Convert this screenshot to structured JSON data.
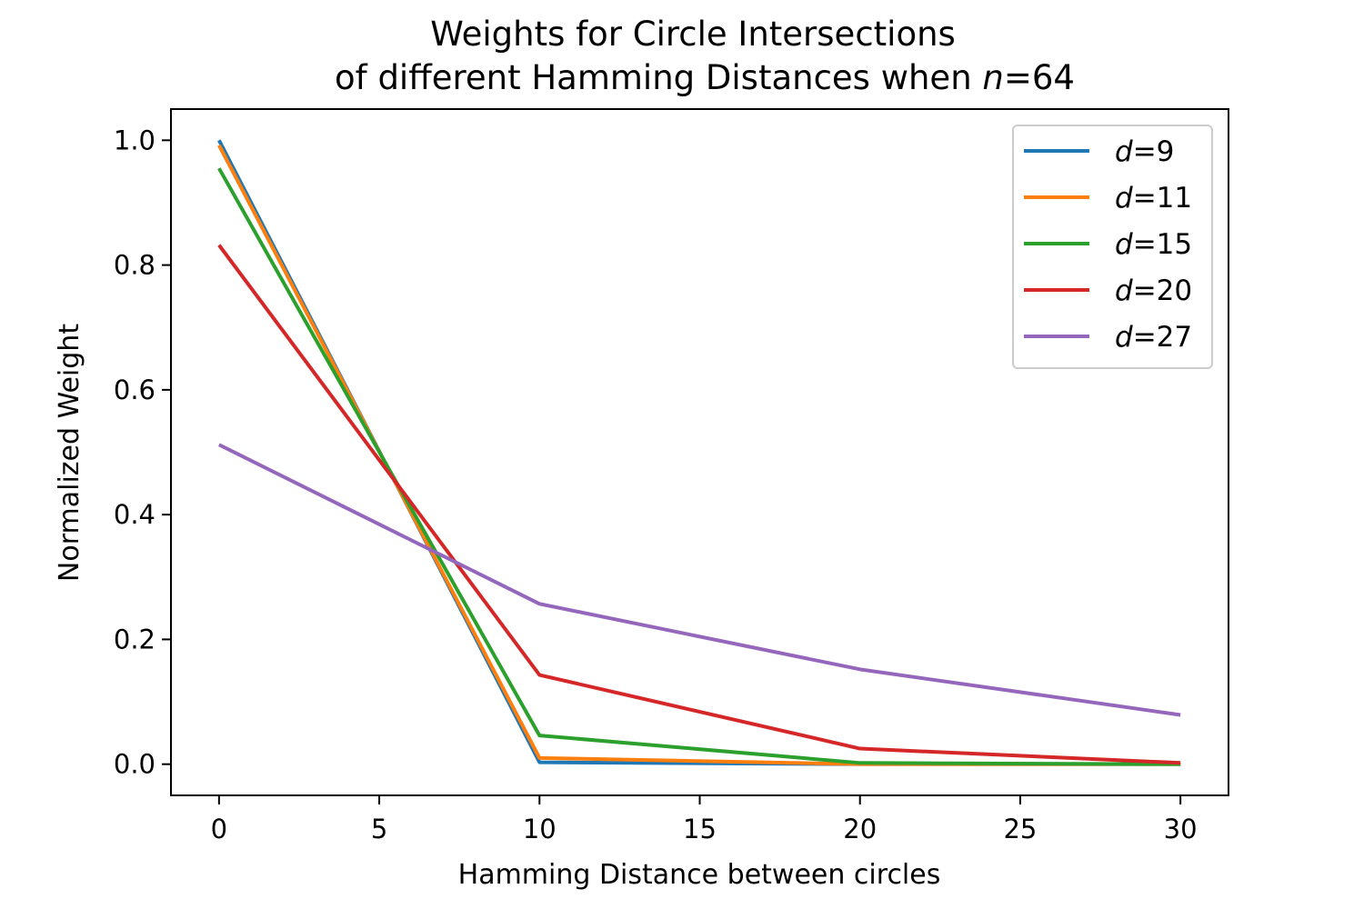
{
  "chart_data": {
    "type": "line",
    "title": {
      "line1": "Weights for Circle Intersections",
      "line2_prefix": "of different Hamming Distances when ",
      "line2_var": "n",
      "line2_suffix": "=64"
    },
    "xlabel": "Hamming Distance between circles",
    "ylabel": "Normalized Weight",
    "xlim": [
      -1.5,
      31.5
    ],
    "ylim": [
      -0.05,
      1.05
    ],
    "xticks": [
      0,
      5,
      10,
      15,
      20,
      25,
      30
    ],
    "xtick_labels": [
      "0",
      "5",
      "10",
      "15",
      "20",
      "25",
      "30"
    ],
    "yticks": [
      0.0,
      0.2,
      0.4,
      0.6,
      0.8,
      1.0
    ],
    "ytick_labels": [
      "0.0",
      "0.2",
      "0.4",
      "0.6",
      "0.8",
      "1.0"
    ],
    "grid": false,
    "legend_position": "top-right",
    "x": [
      0,
      10,
      20,
      30
    ],
    "series": [
      {
        "name": "d=9",
        "var": "d",
        "value": "=9",
        "color": "#1f77b4",
        "values": [
          1.0,
          0.003,
          0.0,
          0.0
        ]
      },
      {
        "name": "d=11",
        "var": "d",
        "value": "=11",
        "color": "#ff7f0e",
        "values": [
          0.992,
          0.01,
          0.0,
          0.0
        ]
      },
      {
        "name": "d=15",
        "var": "d",
        "value": "=15",
        "color": "#2ca02c",
        "values": [
          0.955,
          0.046,
          0.002,
          0.0
        ]
      },
      {
        "name": "d=20",
        "var": "d",
        "value": "=20",
        "color": "#d62728",
        "values": [
          0.832,
          0.143,
          0.025,
          0.002
        ]
      },
      {
        "name": "d=27",
        "var": "d",
        "value": "=27",
        "color": "#9467bd",
        "values": [
          0.512,
          0.257,
          0.152,
          0.079
        ]
      }
    ]
  }
}
